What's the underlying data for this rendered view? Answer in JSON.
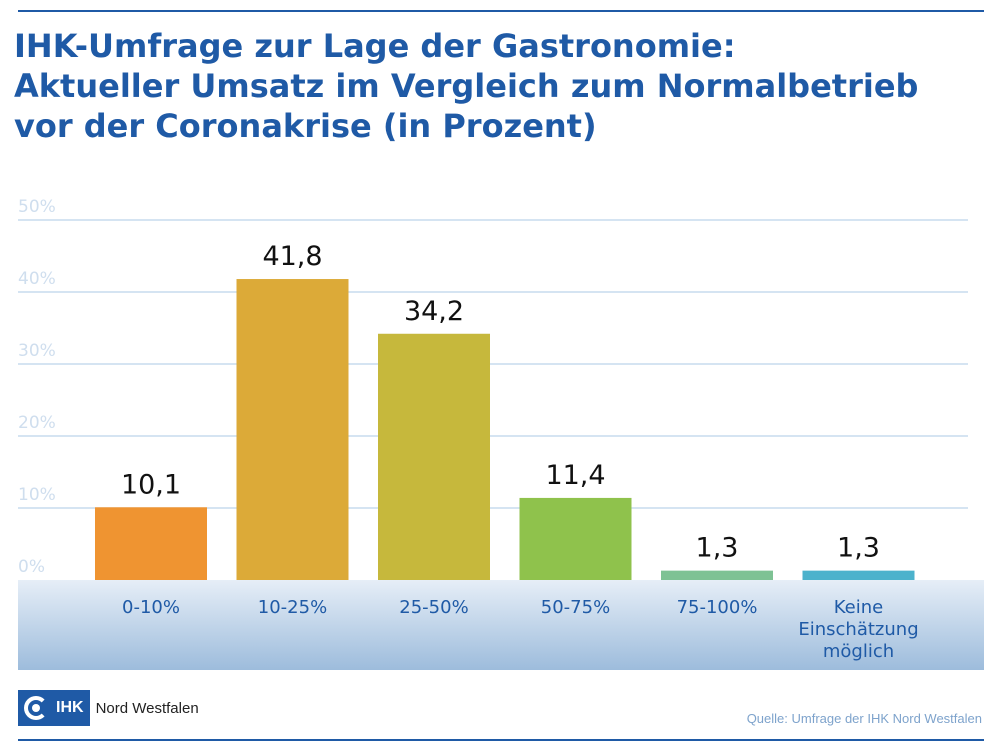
{
  "header": {
    "title_lines": [
      "IHK-Umfrage zur Lage der Gastronomie:",
      "Aktueller Umsatz im Vergleich zum Normalbetrieb",
      "vor der Coronakrise (in Prozent)"
    ]
  },
  "chart_data": {
    "type": "bar",
    "categories": [
      "0-10%",
      "10-25%",
      "25-50%",
      "50-75%",
      "75-100%",
      "Keine Einschätzung möglich"
    ],
    "category_lines": [
      [
        "0-10%"
      ],
      [
        "10-25%"
      ],
      [
        "25-50%"
      ],
      [
        "50-75%"
      ],
      [
        "75-100%"
      ],
      [
        "Keine",
        "Einschätzung",
        "möglich"
      ]
    ],
    "values": [
      10.1,
      41.8,
      34.2,
      11.4,
      1.3,
      1.3
    ],
    "value_labels": [
      "10,1",
      "41,8",
      "34,2",
      "11,4",
      "1,3",
      "1,3"
    ],
    "bar_colors": [
      "#ef9431",
      "#dcaa38",
      "#c6b83c",
      "#8fc24c",
      "#7ec294",
      "#4cb2cc"
    ],
    "ylim": [
      0,
      50
    ],
    "yticks": [
      0,
      10,
      20,
      30,
      40,
      50
    ],
    "ytick_labels": [
      "0%",
      "10%",
      "20%",
      "30%",
      "40%",
      "50%"
    ],
    "grid": true
  },
  "branding": {
    "logo_text": "IHK",
    "logo_name": "Nord Westfalen"
  },
  "footer": {
    "source": "Quelle: Umfrage der IHK Nord Westfalen"
  },
  "colors": {
    "title": "#1f5aa6",
    "grid": "#bcd3ea",
    "tick_label": "#cfdeee",
    "baseband_top": "#e6eef7",
    "baseband_bottom": "#9dbcdc"
  }
}
